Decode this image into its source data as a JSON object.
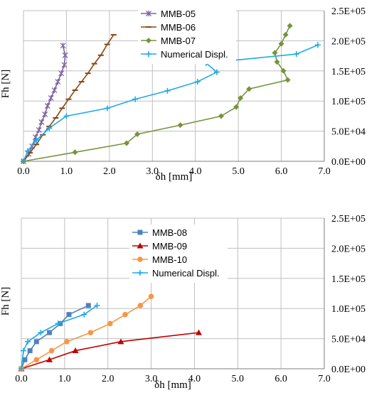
{
  "chart_data": [
    {
      "type": "line",
      "xlabel": "δh [mm]",
      "ylabel": "Fh [N]",
      "xlim": [
        0,
        7
      ],
      "ylim": [
        0,
        250000
      ],
      "x_ticks": [
        "0.0",
        "1.0",
        "2.0",
        "3.0",
        "4.0",
        "5.0",
        "6.0",
        "7.0"
      ],
      "y_ticks": [
        "0.0E+00",
        "5.0E+04",
        "1.0E+05",
        "1.5E+05",
        "2.0E+05",
        "2.5E+05"
      ],
      "grid": true,
      "legend_position": "top-center",
      "series": [
        {
          "name": "MMB-05",
          "color": "#8064a2",
          "marker": "asterisk",
          "x": [
            0,
            0.12,
            0.2,
            0.28,
            0.36,
            0.42,
            0.5,
            0.56,
            0.64,
            0.72,
            0.8,
            0.88,
            0.95,
            0.97,
            0.92
          ],
          "y": [
            0,
            12000,
            25000,
            40000,
            52000,
            65000,
            78000,
            92000,
            105000,
            118000,
            132000,
            146000,
            160000,
            176000,
            192000
          ]
        },
        {
          "name": "MMB-06",
          "color": "#8b4513",
          "marker": "dash",
          "x": [
            0,
            0.15,
            0.3,
            0.45,
            0.6,
            0.75,
            0.9,
            1.05,
            1.2,
            1.35,
            1.5,
            1.65,
            1.8,
            1.95,
            2.1
          ],
          "y": [
            0,
            14000,
            28000,
            44000,
            58000,
            72000,
            88000,
            103000,
            118000,
            132000,
            146000,
            162000,
            176000,
            194000,
            210000
          ]
        },
        {
          "name": "MMB-07",
          "color": "#77933c",
          "marker": "diamond",
          "x": [
            0,
            1.2,
            2.4,
            2.65,
            3.65,
            4.6,
            4.95,
            5.05,
            5.25,
            6.15,
            6.05,
            5.9,
            5.85,
            6.0,
            6.1,
            6.2
          ],
          "y": [
            0,
            15000,
            30000,
            45000,
            60000,
            75000,
            90000,
            105000,
            120000,
            135000,
            150000,
            165000,
            180000,
            195000,
            210000,
            225000
          ]
        },
        {
          "name": "Numerical Displ.",
          "color": "#1eaae8",
          "marker": "plus",
          "x": [
            0,
            0.1,
            0.3,
            0.6,
            1.0,
            1.95,
            2.6,
            3.35,
            4.05,
            4.5,
            4.25,
            6.35,
            6.85
          ],
          "y": [
            0,
            17000,
            35000,
            55000,
            75000,
            88000,
            103000,
            117000,
            132000,
            148000,
            163000,
            178000,
            193000
          ]
        }
      ]
    },
    {
      "type": "line",
      "xlabel": "δh [mm]",
      "ylabel": "Fh [N]",
      "xlim": [
        0,
        7
      ],
      "ylim": [
        0,
        250000
      ],
      "x_ticks": [
        "0.0",
        "1.0",
        "2.0",
        "3.0",
        "4.0",
        "5.0",
        "6.0",
        "7.0"
      ],
      "y_ticks": [
        "0.0E+00",
        "5.0E+04",
        "1.0E+05",
        "1.5E+05",
        "2.0E+05",
        "2.5E+05"
      ],
      "grid": true,
      "legend_position": "top-center",
      "series": [
        {
          "name": "MMB-08",
          "color": "#4f81bd",
          "marker": "square",
          "x": [
            0,
            0.08,
            0.2,
            0.35,
            0.65,
            0.9,
            1.1,
            1.55
          ],
          "y": [
            0,
            15000,
            30000,
            45000,
            60000,
            75000,
            90000,
            105000
          ]
        },
        {
          "name": "MMB-09",
          "color": "#c00000",
          "marker": "triangle",
          "x": [
            0,
            0.65,
            1.25,
            2.3,
            4.1
          ],
          "y": [
            0,
            15000,
            30000,
            45000,
            60000
          ]
        },
        {
          "name": "MMB-10",
          "color": "#f79646",
          "marker": "circle",
          "x": [
            0,
            0.35,
            0.7,
            1.05,
            1.6,
            2.05,
            2.4,
            2.75,
            3.0
          ],
          "y": [
            0,
            15000,
            30000,
            45000,
            60000,
            75000,
            90000,
            105000,
            120000
          ]
        },
        {
          "name": "Numerical Displ.",
          "color": "#1eaae8",
          "marker": "plus",
          "x": [
            0,
            0.05,
            0.15,
            0.45,
            0.85,
            1.45,
            1.75
          ],
          "y": [
            0,
            30000,
            45000,
            60000,
            75000,
            90000,
            105000
          ]
        }
      ]
    }
  ]
}
